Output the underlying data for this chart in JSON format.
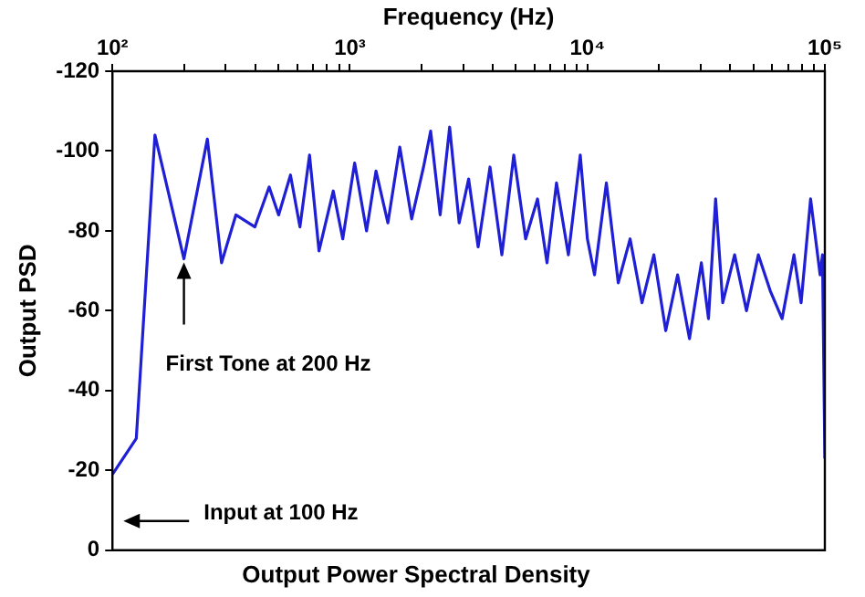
{
  "chart_data": {
    "type": "line",
    "title": "Output Power Spectral Density",
    "xlabel": "Frequency (Hz)",
    "ylabel": "Output PSD",
    "x": [
      100,
      126,
      151,
      200,
      251,
      288,
      331,
      398,
      457,
      501,
      562,
      616,
      676,
      741,
      851,
      933,
      1047,
      1175,
      1288,
      1445,
      1622,
      1820,
      2042,
      2188,
      2399,
      2630,
      2884,
      3162,
      3467,
      3890,
      4365,
      4898,
      5495,
      6166,
      6761,
      7413,
      8318,
      9333,
      10000,
      10715,
      12023,
      13490,
      15136,
      16982,
      19055,
      21380,
      23988,
      26915,
      30200,
      32359,
      34674,
      37154,
      41687,
      46774,
      52481,
      58884,
      66069,
      74131,
      79433,
      87096,
      95499,
      97724,
      100000
    ],
    "values": [
      -19,
      -28,
      -104,
      -73,
      -103,
      -72,
      -84,
      -81,
      -91,
      -84,
      -94,
      -81,
      -99,
      -75,
      -90,
      -78,
      -97,
      -80,
      -95,
      -82,
      -101,
      -83,
      -96,
      -105,
      -84,
      -106,
      -82,
      -93,
      -76,
      -96,
      -74,
      -99,
      -78,
      -88,
      -72,
      -92,
      -74,
      -99,
      -78,
      -69,
      -92,
      -67,
      -78,
      -62,
      -74,
      -55,
      -69,
      -53,
      -72,
      -58,
      -88,
      -62,
      -74,
      -60,
      -74,
      -65,
      -58,
      -74,
      -62,
      -88,
      -69,
      -74,
      -23
    ],
    "color": "#1f1fd6",
    "marker": "none",
    "line_style": "solid",
    "log": "x",
    "xlim": [
      100,
      100000
    ],
    "xticks": [
      {
        "value": 100,
        "label": "10²"
      },
      {
        "value": 200,
        "label": null
      },
      {
        "value": 300,
        "label": null
      },
      {
        "value": 400,
        "label": null
      },
      {
        "value": 500,
        "label": null
      },
      {
        "value": 600,
        "label": null
      },
      {
        "value": 700,
        "label": null
      },
      {
        "value": 800,
        "label": null
      },
      {
        "value": 900,
        "label": null
      },
      {
        "value": 1000,
        "label": "10³"
      },
      {
        "value": 2000,
        "label": null
      },
      {
        "value": 3000,
        "label": null
      },
      {
        "value": 4000,
        "label": null
      },
      {
        "value": 5000,
        "label": null
      },
      {
        "value": 6000,
        "label": null
      },
      {
        "value": 7000,
        "label": null
      },
      {
        "value": 8000,
        "label": null
      },
      {
        "value": 9000,
        "label": null
      },
      {
        "value": 10000,
        "label": "10⁴"
      },
      {
        "value": 20000,
        "label": null
      },
      {
        "value": 30000,
        "label": null
      },
      {
        "value": 40000,
        "label": null
      },
      {
        "value": 50000,
        "label": null
      },
      {
        "value": 60000,
        "label": null
      },
      {
        "value": 70000,
        "label": null
      },
      {
        "value": 80000,
        "label": null
      },
      {
        "value": 90000,
        "label": null
      },
      {
        "value": 100000,
        "label": "10⁵"
      }
    ],
    "ylim": [
      0,
      -120
    ],
    "yticks": [
      0,
      -20,
      -40,
      -60,
      -80,
      -100,
      -120
    ],
    "annotations": [
      {
        "text": "First Tone at 200 Hz",
        "x": 200,
        "y": -73
      },
      "Input at 100 Hz"
    ]
  }
}
